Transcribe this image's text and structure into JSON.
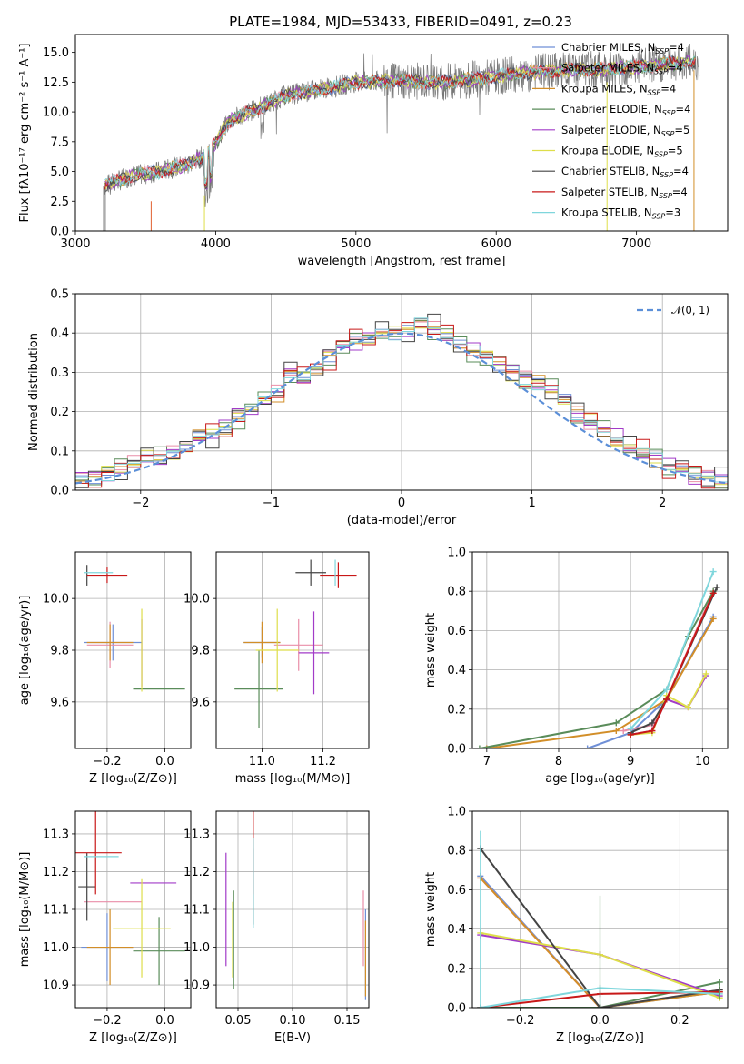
{
  "title": "PLATE=1984, MJD=53433, FIBERID=0491, z=0.23",
  "chart_data": [
    {
      "id": "spectrum",
      "type": "line",
      "xlabel": "wavelength [Angstrom, rest frame]",
      "ylabel": "Flux [fλ10⁻¹⁷ erg cm⁻² s⁻¹ A⁻¹]",
      "xlim": [
        3000,
        7650
      ],
      "ylim": [
        0,
        16.5
      ],
      "xticks": [
        3000,
        4000,
        5000,
        6000,
        7000
      ],
      "yticks": [
        0.0,
        2.5,
        5.0,
        7.5,
        10.0,
        12.5,
        15.0
      ],
      "grid": false,
      "legend_position": "top-right",
      "observed_color": "#777777",
      "envelope": {
        "x": [
          3200,
          3400,
          3600,
          3800,
          3950,
          4100,
          4300,
          4500,
          4800,
          5000,
          5300,
          5600,
          5900,
          6200,
          6500,
          6800,
          7100,
          7400
        ],
        "y": [
          3.8,
          4.6,
          5.0,
          5.6,
          6.5,
          9.3,
          10.3,
          11.4,
          12.0,
          12.5,
          12.6,
          12.5,
          12.8,
          13.3,
          13.5,
          13.6,
          13.9,
          14.2
        ]
      },
      "series": [
        {
          "name": "Chabrier MILES, N",
          "sub": "SSP",
          "suffix": "=4",
          "color": "#6f8fd6"
        },
        {
          "name": "Salpeter MILES, N",
          "sub": "SSP",
          "suffix": "=4",
          "color": "#e98ea8"
        },
        {
          "name": "Kroupa MILES, N",
          "sub": "SSP",
          "suffix": "=4",
          "color": "#d28e28"
        },
        {
          "name": "Chabrier ELODIE, N",
          "sub": "SSP",
          "suffix": "=4",
          "color": "#5a8c5a"
        },
        {
          "name": "Salpeter ELODIE, N",
          "sub": "SSP",
          "suffix": "=5",
          "color": "#a23bc8"
        },
        {
          "name": "Kroupa ELODIE, N",
          "sub": "SSP",
          "suffix": "=5",
          "color": "#dede4a"
        },
        {
          "name": "Chabrier STELIB, N",
          "sub": "SSP",
          "suffix": "=4",
          "color": "#444444"
        },
        {
          "name": "Salpeter STELIB, N",
          "sub": "SSP",
          "suffix": "=4",
          "color": "#c81818"
        },
        {
          "name": "Kroupa STELIB, N",
          "sub": "SSP",
          "suffix": "=3",
          "color": "#7fd6dc"
        }
      ]
    },
    {
      "id": "residuals",
      "type": "step",
      "xlabel": "(data-model)/error",
      "ylabel": "Normed distribution",
      "xlim": [
        -2.5,
        2.5
      ],
      "ylim": [
        0,
        0.5
      ],
      "xticks": [
        -2,
        -1,
        0,
        1,
        2
      ],
      "yticks": [
        0.0,
        0.1,
        0.2,
        0.3,
        0.4,
        0.5
      ],
      "grid": true,
      "legend_position": "top-right",
      "normal_label": "𝒩(0, 1)",
      "normal_color": "#5b8fd8",
      "bin_width": 0.1,
      "hist_y": [
        0.025,
        0.03,
        0.04,
        0.055,
        0.07,
        0.08,
        0.085,
        0.095,
        0.11,
        0.135,
        0.14,
        0.16,
        0.185,
        0.205,
        0.23,
        0.245,
        0.3,
        0.29,
        0.305,
        0.34,
        0.37,
        0.385,
        0.39,
        0.395,
        0.4,
        0.41,
        0.425,
        0.415,
        0.39,
        0.37,
        0.35,
        0.34,
        0.32,
        0.3,
        0.28,
        0.27,
        0.26,
        0.23,
        0.195,
        0.175,
        0.15,
        0.13,
        0.11,
        0.095,
        0.08,
        0.06,
        0.05,
        0.04,
        0.03,
        0.025
      ],
      "hist_offsets": [
        0.0,
        0.012,
        -0.01,
        0.018,
        -0.015,
        0.008,
        0.022,
        -0.02,
        0.005
      ]
    },
    {
      "id": "age-vs-Z",
      "type": "errorbar",
      "xlabel": "Z [log₁₀(Z/Z⊙)]",
      "ylabel": "age  [log₁₀(age/yr)]",
      "xlim": [
        -0.31,
        0.09
      ],
      "ylim": [
        9.42,
        10.18
      ],
      "xticks": [
        -0.2,
        0.0
      ],
      "yticks": [
        9.6,
        9.8,
        10.0
      ],
      "points": [
        {
          "x": -0.18,
          "y": 9.83,
          "xerr": 0.1,
          "yerr": 0.07,
          "color": "#6f8fd6"
        },
        {
          "x": -0.19,
          "y": 9.82,
          "xerr": 0.08,
          "yerr": 0.09,
          "color": "#e98ea8"
        },
        {
          "x": -0.19,
          "y": 9.83,
          "xerr": 0.08,
          "yerr": 0.07,
          "color": "#d28e28"
        },
        {
          "x": -0.02,
          "y": 9.65,
          "xerr": 0.09,
          "yerr": 0.0,
          "color": "#5a8c5a"
        },
        {
          "x": -0.08,
          "y": 9.79,
          "xerr": 0.0,
          "yerr": 0.13,
          "color": "#a23bc8"
        },
        {
          "x": -0.08,
          "y": 9.8,
          "xerr": 0.0,
          "yerr": 0.16,
          "color": "#dede4a"
        },
        {
          "x": -0.27,
          "y": 10.09,
          "xerr": 0.0,
          "yerr": 0.04,
          "color": "#444444"
        },
        {
          "x": -0.2,
          "y": 10.09,
          "xerr": 0.07,
          "yerr": 0.03,
          "color": "#c81818"
        },
        {
          "x": -0.23,
          "y": 10.1,
          "xerr": 0.05,
          "yerr": 0.0,
          "color": "#7fd6dc"
        }
      ]
    },
    {
      "id": "age-vs-mass",
      "type": "errorbar",
      "xlabel": "mass [log₁₀(M/M⊙)]",
      "ylabel": "",
      "xlim": [
        10.85,
        11.35
      ],
      "ylim": [
        9.42,
        10.18
      ],
      "xticks": [
        11.0,
        11.2
      ],
      "yticks": [
        9.6,
        9.8,
        10.0
      ],
      "points": [
        {
          "x": 11.0,
          "y": 9.83,
          "xerr": 0.06,
          "yerr": 0.06,
          "color": "#6f8fd6"
        },
        {
          "x": 11.12,
          "y": 9.82,
          "xerr": 0.08,
          "yerr": 0.1,
          "color": "#e98ea8"
        },
        {
          "x": 11.0,
          "y": 9.83,
          "xerr": 0.06,
          "yerr": 0.08,
          "color": "#d28e28"
        },
        {
          "x": 10.99,
          "y": 9.65,
          "xerr": 0.08,
          "yerr": 0.15,
          "color": "#5a8c5a"
        },
        {
          "x": 11.17,
          "y": 9.79,
          "xerr": 0.05,
          "yerr": 0.16,
          "color": "#a23bc8"
        },
        {
          "x": 11.05,
          "y": 9.8,
          "xerr": 0.07,
          "yerr": 0.16,
          "color": "#dede4a"
        },
        {
          "x": 11.16,
          "y": 10.1,
          "xerr": 0.05,
          "yerr": 0.05,
          "color": "#444444"
        },
        {
          "x": 11.25,
          "y": 10.09,
          "xerr": 0.06,
          "yerr": 0.05,
          "color": "#c81818"
        },
        {
          "x": 11.24,
          "y": 10.1,
          "xerr": 0.0,
          "yerr": 0.05,
          "color": "#7fd6dc"
        }
      ]
    },
    {
      "id": "weight-vs-age",
      "type": "line",
      "xlabel": "age  [log₁₀(age/yr)]",
      "ylabel": "mass weight",
      "xlim": [
        6.8,
        10.35
      ],
      "ylim": [
        0,
        1.0
      ],
      "xticks": [
        7,
        8,
        9,
        10
      ],
      "yticks": [
        0.0,
        0.2,
        0.4,
        0.6,
        0.8,
        1.0
      ],
      "series": [
        {
          "color": "#6f8fd6",
          "x": [
            8.4,
            9.0,
            9.5,
            10.15
          ],
          "y": [
            0.0,
            0.08,
            0.25,
            0.67
          ]
        },
        {
          "color": "#e98ea8",
          "x": [
            8.9,
            9.3,
            9.5,
            10.15
          ],
          "y": [
            0.09,
            0.12,
            0.25,
            0.8
          ]
        },
        {
          "color": "#d28e28",
          "x": [
            7.0,
            8.8,
            9.5,
            10.15
          ],
          "y": [
            0.0,
            0.09,
            0.25,
            0.66
          ]
        },
        {
          "color": "#5a8c5a",
          "x": [
            6.9,
            8.8,
            9.5,
            9.8,
            10.15
          ],
          "y": [
            0.0,
            0.13,
            0.3,
            0.57,
            0.8
          ]
        },
        {
          "color": "#a23bc8",
          "x": [
            9.0,
            9.3,
            9.5,
            9.8,
            10.05
          ],
          "y": [
            0.07,
            0.09,
            0.25,
            0.21,
            0.37
          ]
        },
        {
          "color": "#dede4a",
          "x": [
            9.0,
            9.3,
            9.5,
            9.8,
            10.05
          ],
          "y": [
            0.07,
            0.08,
            0.27,
            0.21,
            0.38
          ]
        },
        {
          "color": "#444444",
          "x": [
            9.0,
            9.3,
            9.5,
            10.2
          ],
          "y": [
            0.08,
            0.13,
            0.25,
            0.82
          ]
        },
        {
          "color": "#c81818",
          "x": [
            9.0,
            9.3,
            9.5,
            10.15
          ],
          "y": [
            0.07,
            0.09,
            0.25,
            0.79
          ]
        },
        {
          "color": "#7fd6dc",
          "x": [
            9.0,
            9.5,
            10.15
          ],
          "y": [
            0.1,
            0.3,
            0.9
          ]
        }
      ]
    },
    {
      "id": "mass-vs-Z",
      "type": "errorbar",
      "xlabel": "Z [log₁₀(Z/Z⊙)]",
      "ylabel": "mass [log₁₀(M/M⊙)]",
      "xlim": [
        -0.31,
        0.09
      ],
      "ylim": [
        10.84,
        11.36
      ],
      "xticks": [
        -0.2,
        0.0
      ],
      "yticks": [
        10.9,
        11.0,
        11.1,
        11.2,
        11.3
      ],
      "points": [
        {
          "x": -0.2,
          "y": 11.0,
          "xerr": 0.09,
          "yerr": 0.09,
          "color": "#6f8fd6"
        },
        {
          "x": -0.18,
          "y": 11.12,
          "xerr": 0.1,
          "yerr": 0.0,
          "color": "#e98ea8"
        },
        {
          "x": -0.19,
          "y": 11.0,
          "xerr": 0.08,
          "yerr": 0.1,
          "color": "#d28e28"
        },
        {
          "x": -0.02,
          "y": 10.99,
          "xerr": 0.09,
          "yerr": 0.09,
          "color": "#5a8c5a"
        },
        {
          "x": -0.04,
          "y": 11.17,
          "xerr": 0.08,
          "yerr": 0.0,
          "color": "#a23bc8"
        },
        {
          "x": -0.08,
          "y": 11.05,
          "xerr": 0.1,
          "yerr": 0.13,
          "color": "#dede4a"
        },
        {
          "x": -0.27,
          "y": 11.16,
          "xerr": 0.03,
          "yerr": 0.09,
          "color": "#444444"
        },
        {
          "x": -0.24,
          "y": 11.25,
          "xerr": 0.09,
          "yerr": 0.11,
          "color": "#c81818"
        },
        {
          "x": -0.22,
          "y": 11.24,
          "xerr": 0.06,
          "yerr": 0.0,
          "color": "#7fd6dc"
        }
      ]
    },
    {
      "id": "mass-vs-EBV",
      "type": "errorbar",
      "xlabel": "E(B-V)",
      "ylabel": "",
      "xlim": [
        0.03,
        0.17
      ],
      "ylim": [
        10.84,
        11.36
      ],
      "xticks": [
        0.05,
        0.1,
        0.15
      ],
      "yticks": [
        10.9,
        11.0,
        11.1,
        11.2,
        11.3
      ],
      "points": [
        {
          "x": 0.167,
          "y": 10.98,
          "xerr": 0,
          "yerr": 0.12,
          "color": "#6f8fd6"
        },
        {
          "x": 0.165,
          "y": 11.05,
          "xerr": 0,
          "yerr": 0.1,
          "color": "#e98ea8"
        },
        {
          "x": 0.167,
          "y": 10.97,
          "xerr": 0,
          "yerr": 0.1,
          "color": "#d28e28"
        },
        {
          "x": 0.046,
          "y": 11.02,
          "xerr": 0,
          "yerr": 0.13,
          "color": "#5a8c5a"
        },
        {
          "x": 0.039,
          "y": 11.1,
          "xerr": 0,
          "yerr": 0.15,
          "color": "#a23bc8"
        },
        {
          "x": 0.045,
          "y": 11.02,
          "xerr": 0,
          "yerr": 0.1,
          "color": "#dede4a"
        },
        {
          "x": 0.064,
          "y": 11.16,
          "xerr": 0,
          "yerr": 0.1,
          "color": "#444444"
        },
        {
          "x": 0.064,
          "y": 11.25,
          "xerr": 0,
          "yerr": 0.11,
          "color": "#c81818"
        },
        {
          "x": 0.064,
          "y": 11.17,
          "xerr": 0,
          "yerr": 0.12,
          "color": "#7fd6dc"
        }
      ]
    },
    {
      "id": "weight-vs-Z",
      "type": "line",
      "xlabel": "Z [log₁₀(Z/Z⊙)]",
      "ylabel": "mass weight",
      "xlim": [
        -0.32,
        0.32
      ],
      "ylim": [
        0,
        1.0
      ],
      "xticks": [
        -0.2,
        0.0,
        0.2
      ],
      "yticks": [
        0.0,
        0.2,
        0.4,
        0.6,
        0.8,
        1.0
      ],
      "series": [
        {
          "color": "#6f8fd6",
          "x": [
            -0.3,
            0.0,
            0.3
          ],
          "y": [
            0.67,
            0.0,
            0.08
          ]
        },
        {
          "color": "#e98ea8",
          "x": [
            -0.3,
            0.0,
            0.3
          ],
          "y": [
            0.66,
            0.0,
            0.09
          ]
        },
        {
          "color": "#d28e28",
          "x": [
            -0.3,
            0.0,
            0.3
          ],
          "y": [
            0.66,
            0.0,
            0.08
          ]
        },
        {
          "color": "#5a8c5a",
          "x": [
            -0.3,
            0.0,
            0.3
          ],
          "y": [
            0.0,
            0.0,
            0.13
          ]
        },
        {
          "color": "#a23bc8",
          "x": [
            -0.3,
            0.0,
            0.3
          ],
          "y": [
            0.37,
            0.27,
            0.06
          ]
        },
        {
          "color": "#dede4a",
          "x": [
            -0.3,
            0.0,
            0.3
          ],
          "y": [
            0.38,
            0.27,
            0.05
          ]
        },
        {
          "color": "#444444",
          "x": [
            -0.3,
            0.0,
            0.3
          ],
          "y": [
            0.81,
            0.0,
            0.09
          ]
        },
        {
          "color": "#c81818",
          "x": [
            -0.3,
            0.0,
            0.3
          ],
          "y": [
            0.0,
            0.07,
            0.08
          ]
        },
        {
          "color": "#7fd6dc",
          "x": [
            -0.3,
            0.0,
            0.3
          ],
          "y": [
            0.0,
            0.1,
            0.07
          ]
        }
      ]
    }
  ]
}
